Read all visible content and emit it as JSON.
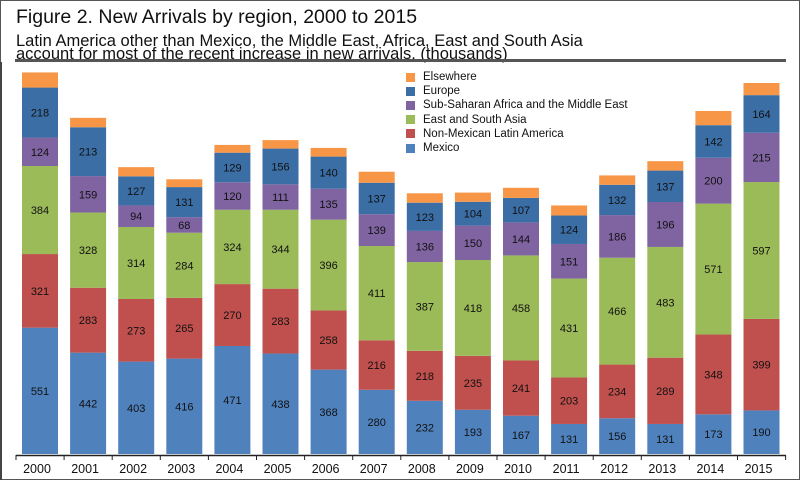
{
  "chart_data": {
    "type": "bar",
    "stacked": true,
    "title": "Figure 2. New Arrivals by region, 2000 to 2015",
    "subtitle_lines": [
      "Latin America other than Mexico, the Middle East, Africa, East and South Asia",
      "account for most of the recent increase in new arrivals. (thousands)"
    ],
    "categories": [
      "2000",
      "2001",
      "2002",
      "2003",
      "2004",
      "2005",
      "2006",
      "2007",
      "2008",
      "2009",
      "2010",
      "2011",
      "2012",
      "2013",
      "2014",
      "2015"
    ],
    "series": [
      {
        "name": "Mexico",
        "color": "#4f81bd",
        "labeled": true,
        "values": [
          551,
          442,
          403,
          416,
          471,
          438,
          368,
          280,
          232,
          193,
          167,
          131,
          156,
          131,
          173,
          190
        ]
      },
      {
        "name": "Non-Mexican Latin America",
        "color": "#c0504d",
        "labeled": true,
        "values": [
          321,
          283,
          273,
          265,
          270,
          283,
          258,
          216,
          218,
          235,
          241,
          203,
          234,
          289,
          348,
          399
        ]
      },
      {
        "name": "East and South Asia",
        "color": "#9bbb59",
        "labeled": true,
        "values": [
          384,
          328,
          314,
          284,
          324,
          344,
          396,
          411,
          387,
          418,
          458,
          431,
          466,
          483,
          571,
          597
        ]
      },
      {
        "name": "Sub-Saharan Africa and the Middle East",
        "color": "#8064a2",
        "labeled": true,
        "values": [
          124,
          159,
          94,
          68,
          120,
          111,
          135,
          139,
          136,
          150,
          144,
          151,
          186,
          196,
          200,
          215
        ]
      },
      {
        "name": "Europe",
        "color": "#3a6ea5",
        "labeled": true,
        "values": [
          218,
          213,
          127,
          131,
          129,
          156,
          140,
          137,
          123,
          104,
          107,
          124,
          132,
          137,
          142,
          164
        ]
      },
      {
        "name": "Elsewhere",
        "color": "#f79646",
        "labeled": false,
        "values": [
          66,
          41,
          40,
          34,
          34,
          37,
          38,
          48,
          41,
          40,
          44,
          44,
          41,
          41,
          62,
          53
        ]
      }
    ],
    "ylim": [
      0,
      1680
    ],
    "y_axis_visible": false,
    "grid": false,
    "legend_placement": "top-center",
    "legend_order": [
      "Elsewhere",
      "Europe",
      "Sub-Saharan Africa and the Middle East",
      "East and South Asia",
      "Non-Mexican Latin America",
      "Mexico"
    ]
  }
}
